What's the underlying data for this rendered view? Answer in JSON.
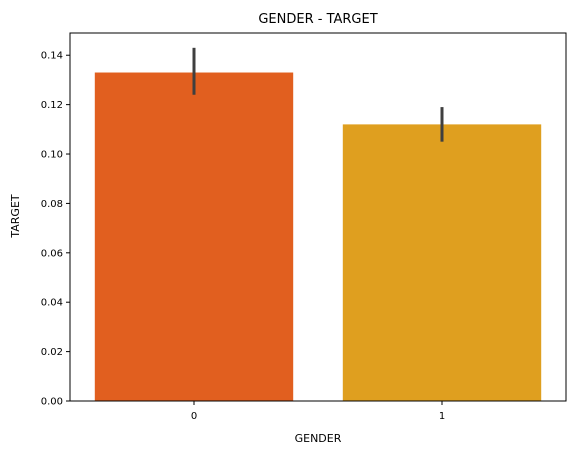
{
  "chart_data": {
    "type": "bar",
    "title": "GENDER - TARGET",
    "xlabel": "GENDER",
    "ylabel": "TARGET",
    "categories": [
      "0",
      "1"
    ],
    "values": [
      0.133,
      0.112
    ],
    "error_bars": [
      {
        "low": 0.124,
        "high": 0.143
      },
      {
        "low": 0.105,
        "high": 0.119
      }
    ],
    "bar_colors": [
      "#e15f1f",
      "#df9f1f"
    ],
    "error_color": "#3f3f3f",
    "ylim": [
      0,
      0.149
    ],
    "yticks": [
      0.0,
      0.02,
      0.04,
      0.06,
      0.08,
      0.1,
      0.12,
      0.14
    ],
    "ytick_labels": [
      "0.00",
      "0.02",
      "0.04",
      "0.06",
      "0.08",
      "0.10",
      "0.12",
      "0.14"
    ],
    "grid": false,
    "legend": "none"
  }
}
